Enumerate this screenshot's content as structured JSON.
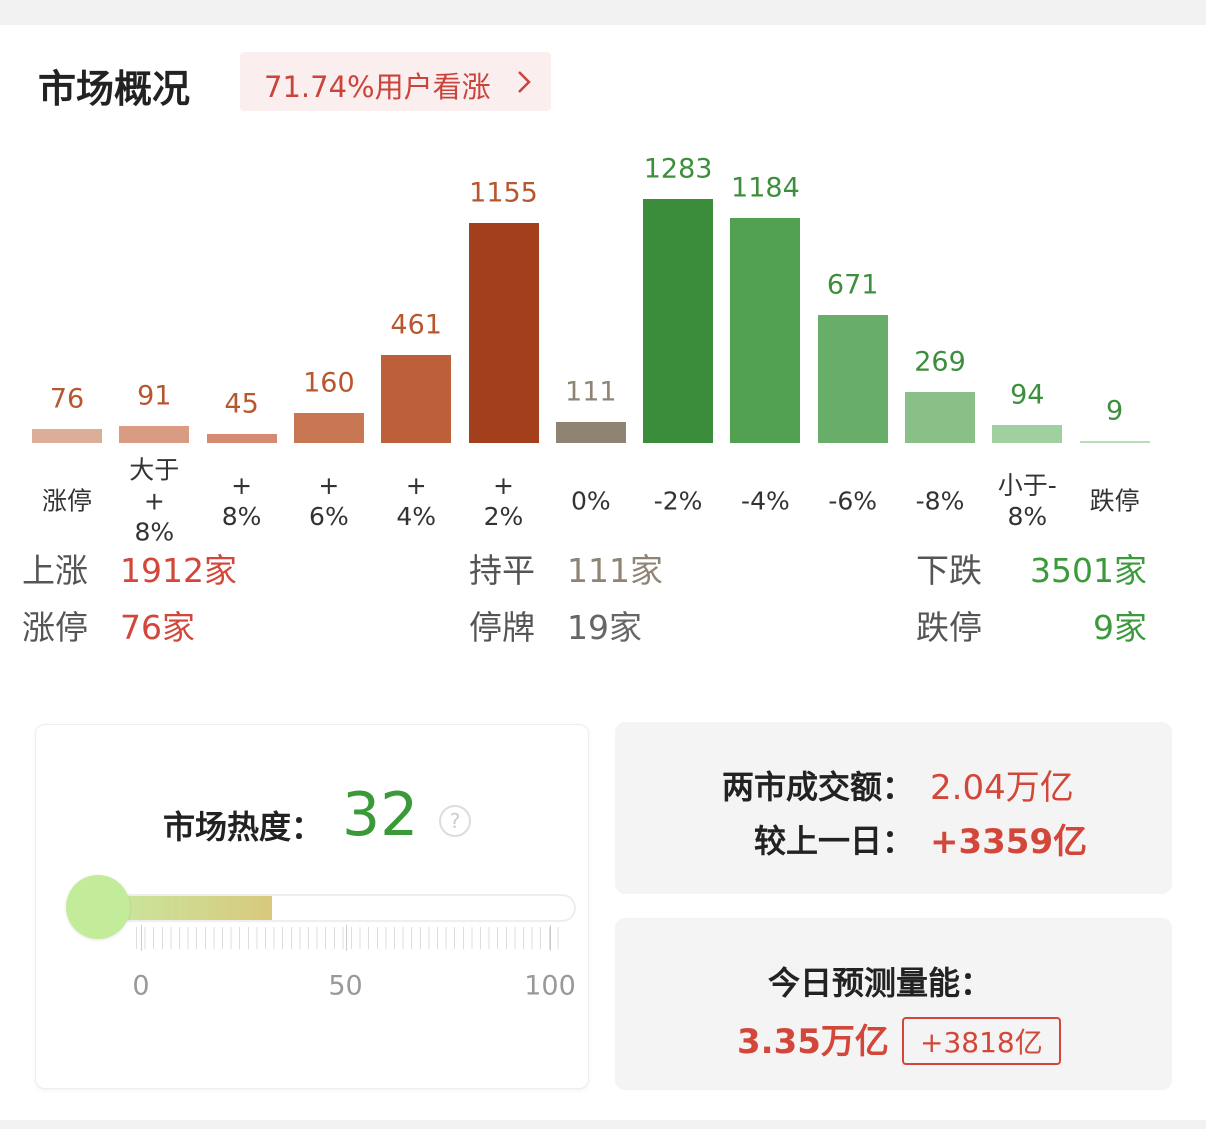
{
  "header": {
    "title": "市场概况",
    "badge": "71.74%用户看涨"
  },
  "chart_data": {
    "type": "bar",
    "categories": [
      "涨停",
      "大于+8%",
      "+8%",
      "+6%",
      "+4%",
      "+2%",
      "0%",
      "-2%",
      "-4%",
      "-6%",
      "-8%",
      "小于-8%",
      "跌停"
    ],
    "values": [
      76,
      91,
      45,
      160,
      461,
      1155,
      111,
      1283,
      1184,
      671,
      269,
      94,
      9
    ],
    "colors": [
      "#dcae99",
      "#d99b81",
      "#d48b6f",
      "#c97653",
      "#bb603b",
      "#a33f1d",
      "#8f8473",
      "#3b8d3b",
      "#52a052",
      "#68ae68",
      "#88c088",
      "#a0cfa0",
      "#b8dcb8"
    ],
    "label_colors": [
      "#b8572f",
      "#b8572f",
      "#b8572f",
      "#b8572f",
      "#b8572f",
      "#b8572f",
      "#8f8473",
      "#3d8f3d",
      "#3d8f3d",
      "#3d8f3d",
      "#3d8f3d",
      "#3d8f3d",
      "#3d8f3d"
    ]
  },
  "stats": [
    {
      "label": "上涨",
      "value": "1912家"
    },
    {
      "label": "涨停",
      "value": "76家"
    },
    {
      "label": "持平",
      "value": "111家"
    },
    {
      "label": "停牌",
      "value": "19家"
    },
    {
      "label": "下跌",
      "value": "3501家"
    },
    {
      "label": "跌停",
      "value": "9家"
    }
  ],
  "heat": {
    "label": "市场热度：",
    "value": 32,
    "xlim": [
      0,
      100
    ],
    "xticks": [
      0,
      50,
      100
    ]
  },
  "turnover": {
    "label": "两市成交额：",
    "value": "2.04万亿",
    "change_label": "较上一日：",
    "change": "+3359亿"
  },
  "forecast": {
    "label": "今日预测量能：",
    "value": "3.35万亿",
    "change": "+3818亿"
  }
}
